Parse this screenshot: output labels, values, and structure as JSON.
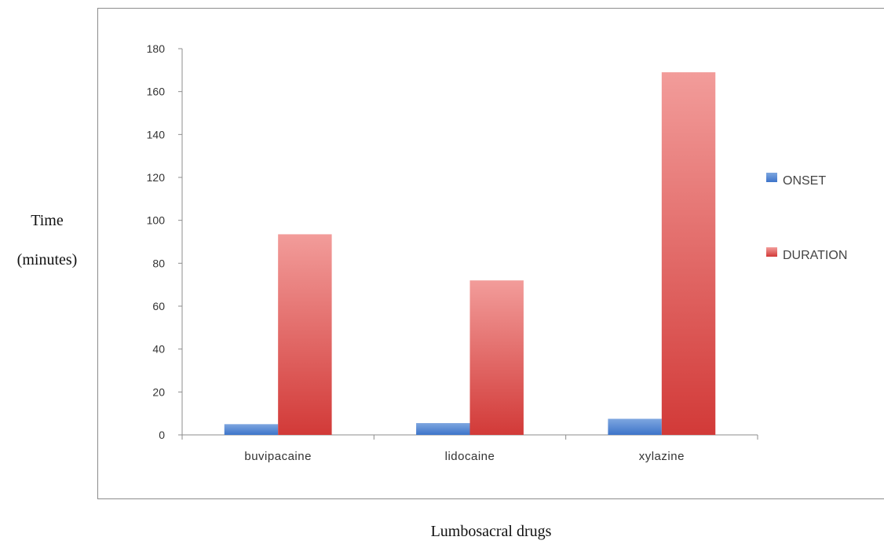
{
  "chart_data": {
    "type": "bar",
    "title": "",
    "xlabel": "Lumbosacral drugs",
    "ylabel": [
      "Time",
      "(minutes)"
    ],
    "categories": [
      "buvipacaine",
      "lidocaine",
      "xylazine"
    ],
    "series": [
      {
        "name": "ONSET",
        "values": [
          5,
          5.5,
          7.5
        ],
        "color": "#4a7fcf"
      },
      {
        "name": "DURATION",
        "values": [
          93.5,
          72,
          169
        ],
        "color": "#d9413f"
      }
    ],
    "ylim": [
      0,
      180
    ],
    "yticks": [
      "0",
      "20",
      "40",
      "60",
      "80",
      "100",
      "120",
      "140",
      "160",
      "180"
    ],
    "grid": false,
    "legend": "right"
  }
}
